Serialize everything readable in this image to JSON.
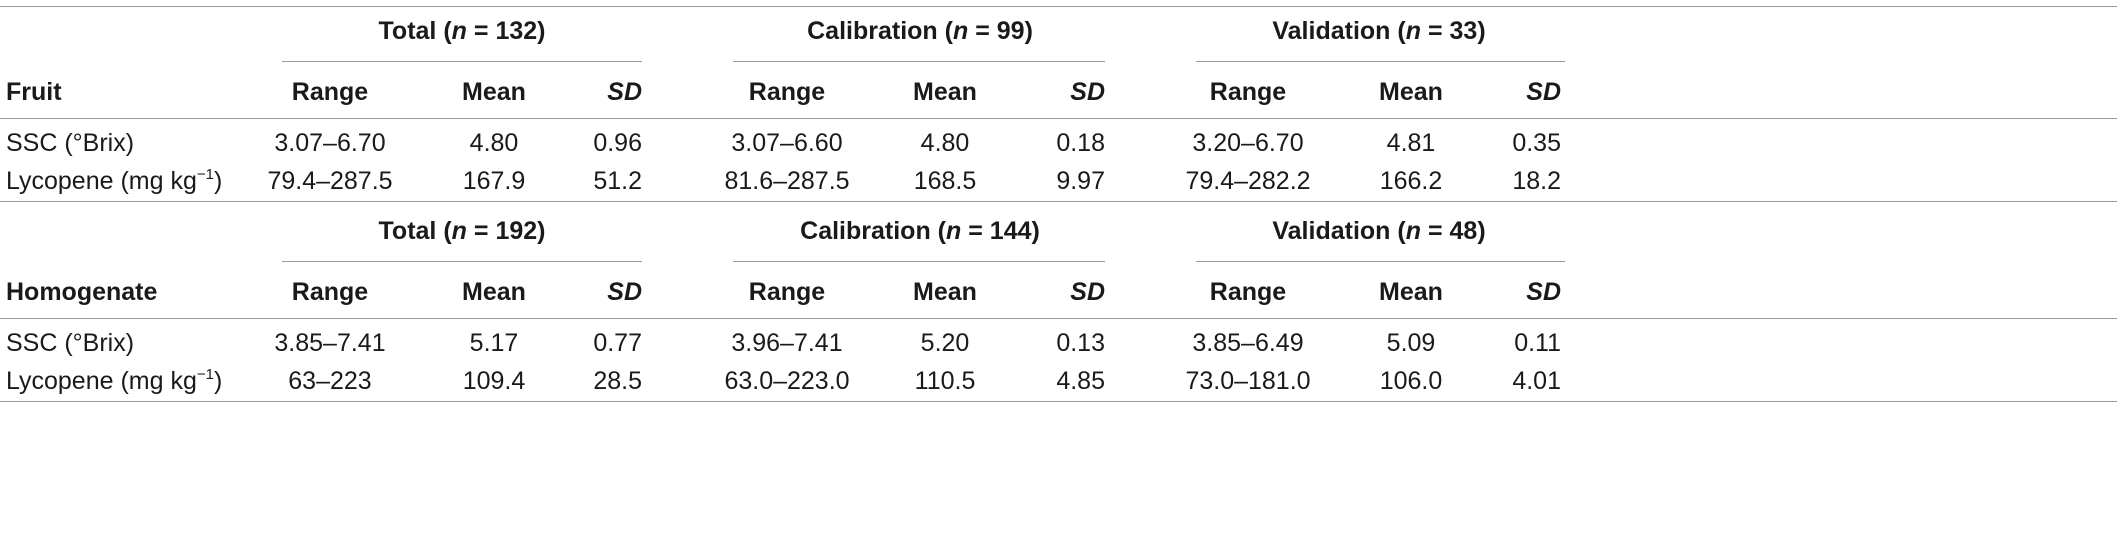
{
  "blocks": [
    {
      "row_label": "Fruit",
      "groups": [
        {
          "name": "Total",
          "n_label": "n",
          "n_sep": " = ",
          "n_value": "132"
        },
        {
          "name": "Calibration",
          "n_label": "n",
          "n_sep": " = ",
          "n_value": "99"
        },
        {
          "name": "Validation",
          "n_label": "n",
          "n_sep": " = ",
          "n_value": "33"
        }
      ],
      "subheaders": [
        "Range",
        "Mean",
        "SD"
      ],
      "rows": [
        {
          "label": "SSC (°Brix)",
          "unit_sup": "",
          "unit_tail": "",
          "values": [
            "3.07–6.70",
            "4.80",
            "0.96",
            "3.07–6.60",
            "4.80",
            "0.18",
            "3.20–6.70",
            "4.81",
            "0.35"
          ]
        },
        {
          "label": "Lycopene (mg kg",
          "unit_sup": "−1",
          "unit_tail": ")",
          "values": [
            "79.4–287.5",
            "167.9",
            "51.2",
            "81.6–287.5",
            "168.5",
            "9.97",
            "79.4–282.2",
            "166.2",
            "18.2"
          ]
        }
      ]
    },
    {
      "row_label": "Homogenate",
      "groups": [
        {
          "name": "Total",
          "n_label": "n",
          "n_sep": " = ",
          "n_value": "192"
        },
        {
          "name": "Calibration",
          "n_label": "n",
          "n_sep": " = ",
          "n_value": "144"
        },
        {
          "name": "Validation",
          "n_label": "n",
          "n_sep": " = ",
          "n_value": "48"
        }
      ],
      "subheaders": [
        "Range",
        "Mean",
        "SD"
      ],
      "rows": [
        {
          "label": "SSC (°Brix)",
          "unit_sup": "",
          "unit_tail": "",
          "values": [
            "3.85–7.41",
            "5.17",
            "0.77",
            "3.96–7.41",
            "5.20",
            "0.13",
            "3.85–6.49",
            "5.09",
            "0.11"
          ]
        },
        {
          "label": "Lycopene (mg kg",
          "unit_sup": "−1",
          "unit_tail": ")",
          "values": [
            "63–223",
            "109.4",
            "28.5",
            "63.0–223.0",
            "110.5",
            "4.85",
            "73.0–181.0",
            "106.0",
            "4.01"
          ]
        }
      ]
    }
  ]
}
